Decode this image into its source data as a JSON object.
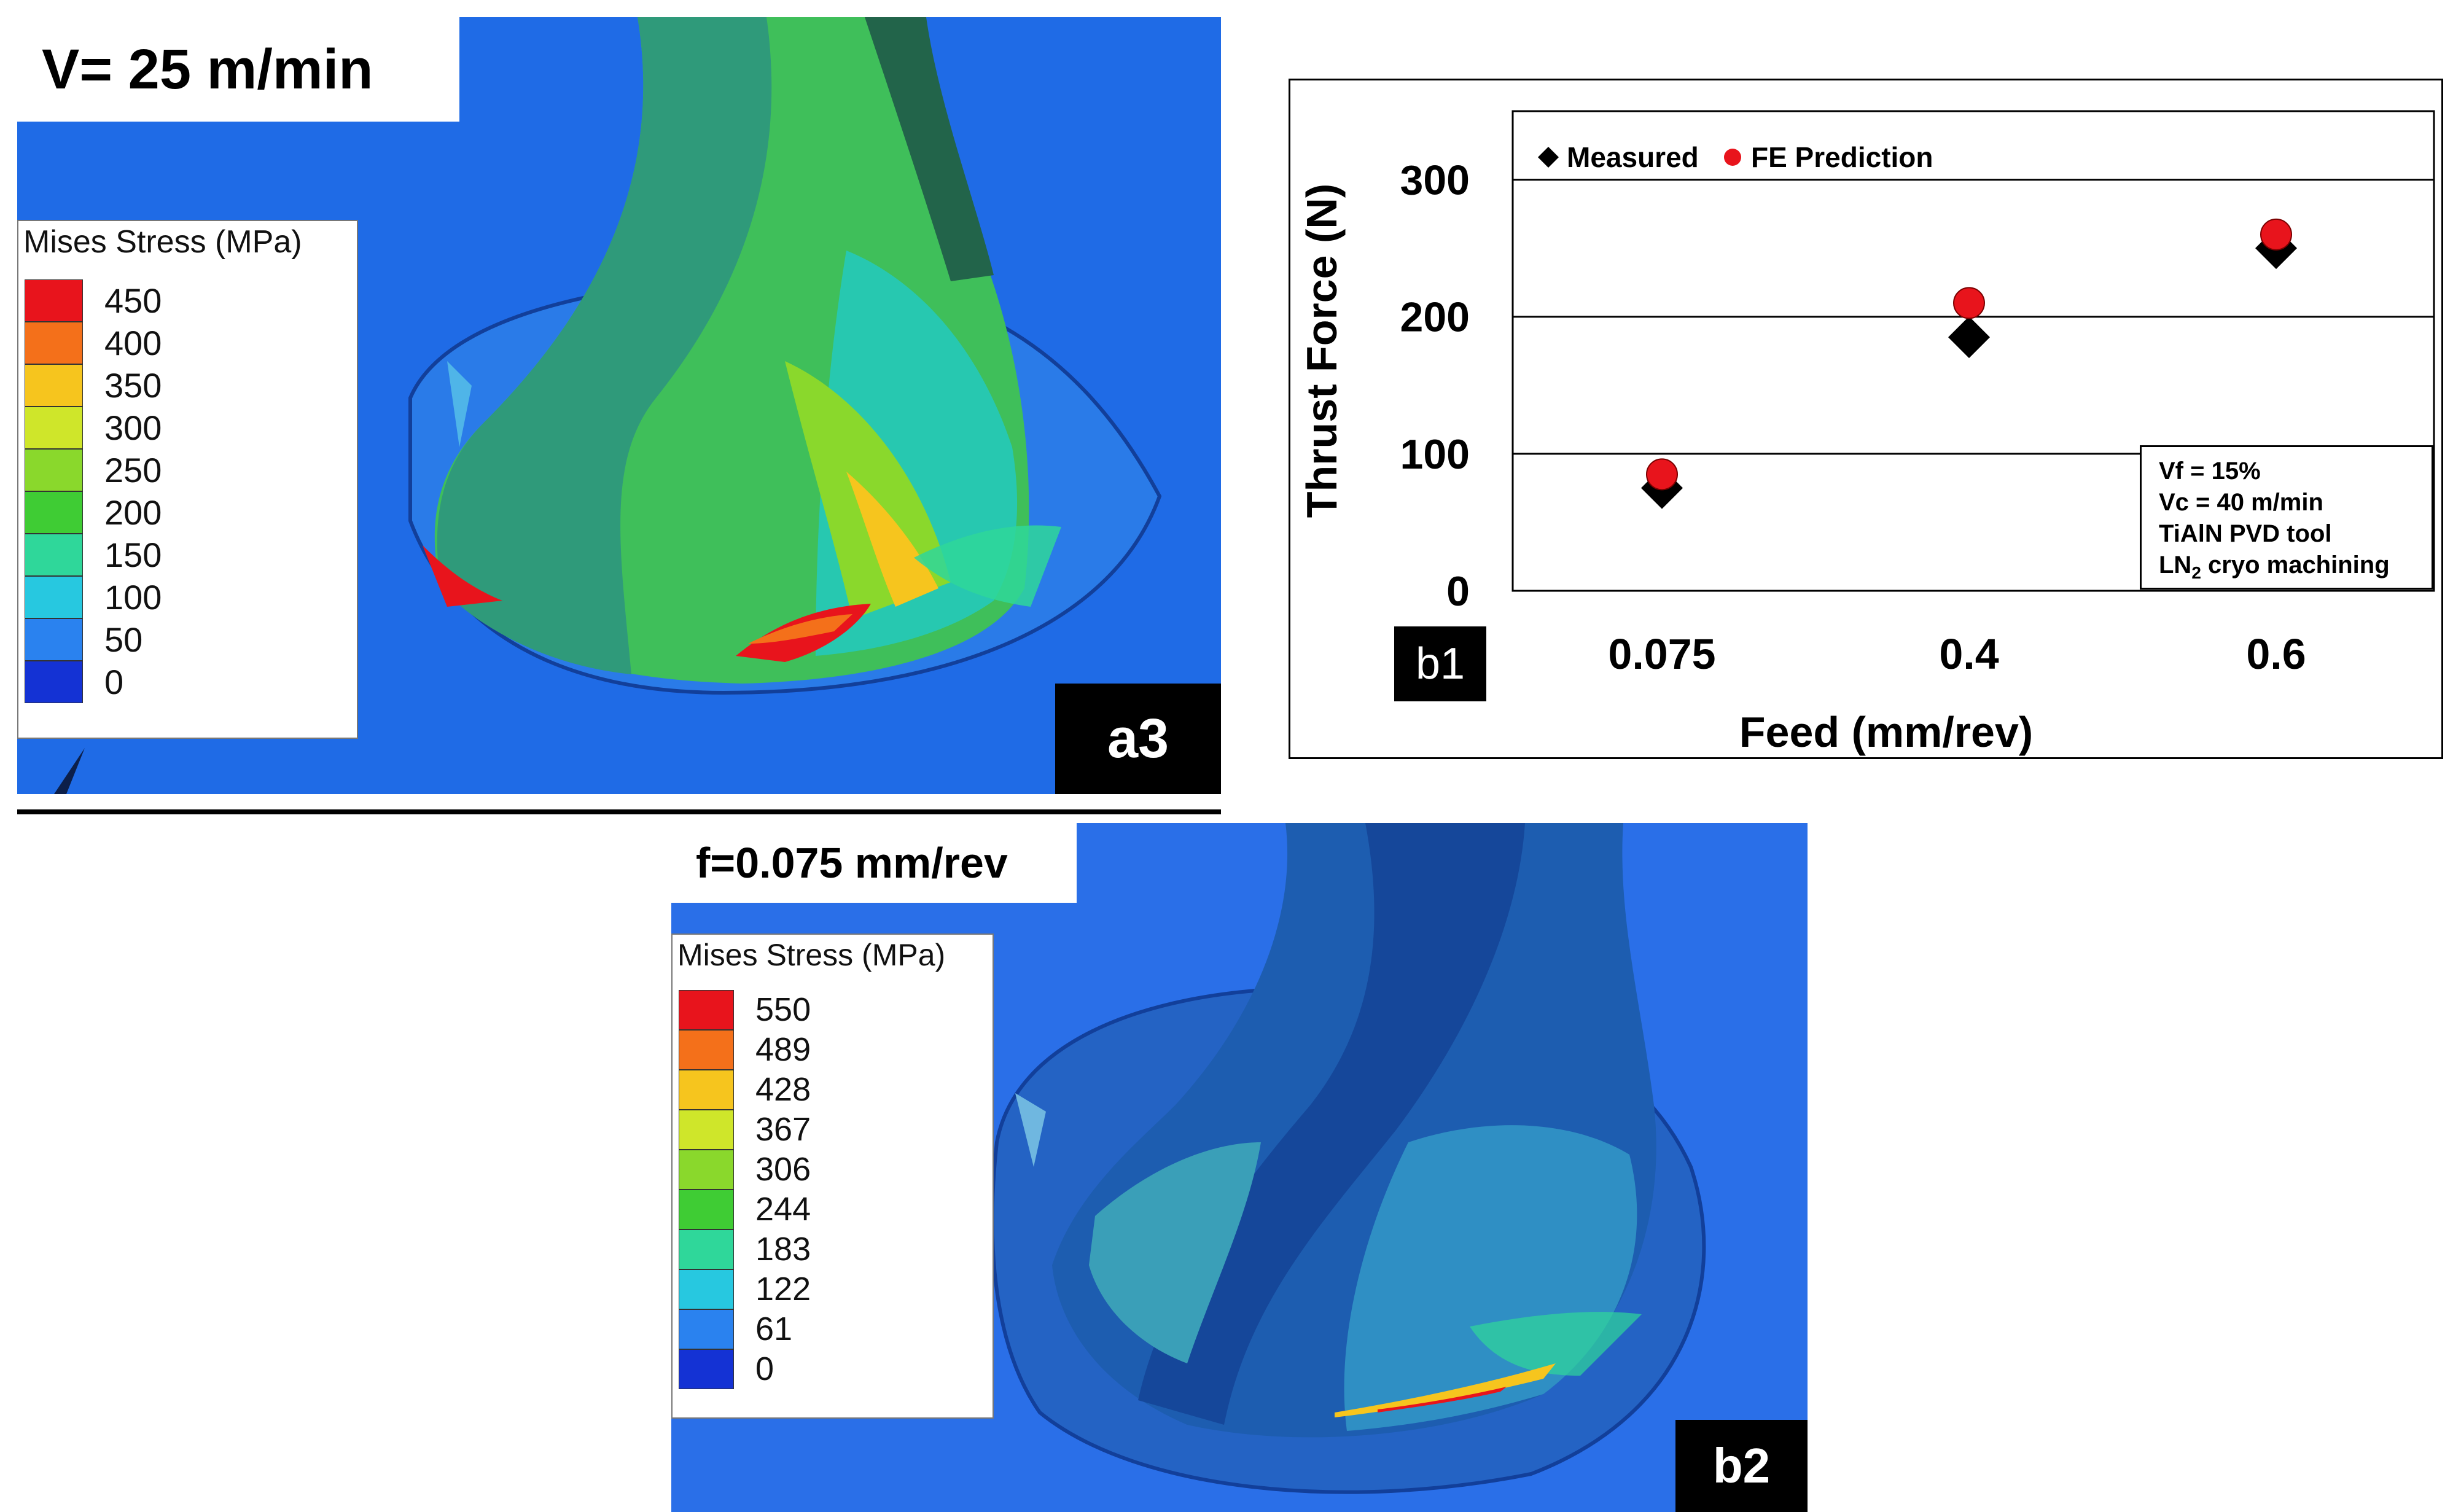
{
  "panel_a3": {
    "condition": "V= 25 m/min",
    "tag": "a3",
    "legend_title": "Mises Stress (MPa)",
    "legend_values": [
      "450",
      "400",
      "350",
      "300",
      "250",
      "200",
      "150",
      "100",
      "50",
      "0"
    ],
    "legend_colors": [
      "#e8141c",
      "#f4701a",
      "#f6c51e",
      "#cfe62a",
      "#8ad82c",
      "#3fcc34",
      "#2fd79a",
      "#27c8e0",
      "#2a82ef",
      "#1432d4"
    ]
  },
  "panel_b2": {
    "condition": "f=0.075 mm/rev",
    "tag": "b2",
    "legend_title": "Mises Stress (MPa)",
    "legend_values": [
      "550",
      "489",
      "428",
      "367",
      "306",
      "244",
      "183",
      "122",
      "61",
      "0"
    ],
    "legend_colors": [
      "#e8141c",
      "#f4701a",
      "#f6c51e",
      "#cfe62a",
      "#8ad82c",
      "#3fcc34",
      "#2fd79a",
      "#27c8e0",
      "#2a82ef",
      "#1432d4"
    ]
  },
  "chart_data": {
    "type": "scatter",
    "tag": "b1",
    "xlabel": "Feed (mm/rev)",
    "ylabel": "Thrust Force (N)",
    "categories": [
      "0.075",
      "0.4",
      "0.6"
    ],
    "ylim": [
      0,
      350
    ],
    "yticks": [
      "0",
      "100",
      "200",
      "300"
    ],
    "grid": "horizontal",
    "legend_placement": "top-left",
    "series": [
      {
        "name": "Measured",
        "marker": "diamond",
        "color": "#000000",
        "values": [
          75,
          185,
          250
        ]
      },
      {
        "name": "FE Prediction",
        "marker": "circle",
        "color": "#e8141c",
        "values": [
          85,
          210,
          260
        ]
      }
    ],
    "annotation": {
      "line1": "Vf = 15%",
      "line2": "Vc = 40 m/min",
      "line3": "TiAlN PVD tool",
      "line4_main": "LN",
      "line4_sub": "2",
      "line4_rest": " cryo machining"
    }
  }
}
